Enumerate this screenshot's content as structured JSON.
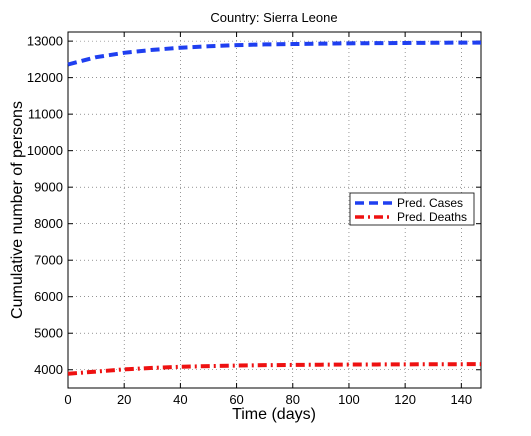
{
  "chart_data": {
    "type": "line",
    "title": "Country: Sierra Leone",
    "xlabel": "Time (days)",
    "ylabel": "Cumulative number of persons",
    "xlim": [
      0,
      147
    ],
    "ylim": [
      3500,
      13250
    ],
    "xticks": [
      0,
      20,
      40,
      60,
      80,
      100,
      120,
      140
    ],
    "yticks": [
      4000,
      5000,
      6000,
      7000,
      8000,
      9000,
      10000,
      11000,
      12000,
      13000
    ],
    "grid": true,
    "legend_position": "right",
    "x": [
      0,
      10,
      20,
      30,
      40,
      50,
      60,
      70,
      80,
      90,
      100,
      110,
      120,
      130,
      140,
      147
    ],
    "series": [
      {
        "name": "Pred. Cases",
        "color": "#1f3ff0",
        "style": "dashed",
        "values": [
          12360,
          12560,
          12680,
          12760,
          12820,
          12860,
          12890,
          12910,
          12920,
          12930,
          12940,
          12945,
          12950,
          12955,
          12960,
          12960
        ]
      },
      {
        "name": "Pred. Deaths",
        "color": "#ee1111",
        "style": "dashdot",
        "values": [
          3890,
          3950,
          4010,
          4050,
          4080,
          4100,
          4115,
          4125,
          4132,
          4138,
          4142,
          4145,
          4148,
          4150,
          4152,
          4153
        ]
      }
    ]
  }
}
